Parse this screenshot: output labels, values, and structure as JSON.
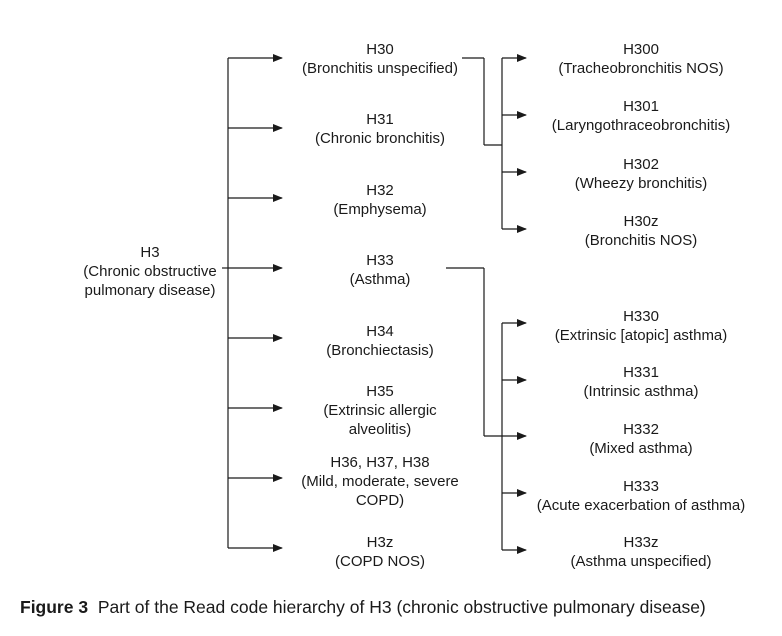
{
  "root": {
    "code": "H3",
    "lines": [
      "(Chronic obstructive",
      "pulmonary disease)"
    ]
  },
  "level1": [
    {
      "code": "H30",
      "lines": [
        "(Bronchitis unspecified)"
      ]
    },
    {
      "code": "H31",
      "lines": [
        "(Chronic bronchitis)"
      ]
    },
    {
      "code": "H32",
      "lines": [
        "(Emphysema)"
      ]
    },
    {
      "code": "H33",
      "lines": [
        "(Asthma)"
      ]
    },
    {
      "code": "H34",
      "lines": [
        "(Bronchiectasis)"
      ]
    },
    {
      "code": "H35",
      "lines": [
        "(Extrinsic allergic",
        "alveolitis)"
      ]
    },
    {
      "code": "H36, H37, H38",
      "lines": [
        "(Mild, moderate, severe",
        "COPD)"
      ]
    },
    {
      "code": "H3z",
      "lines": [
        "(COPD NOS)"
      ]
    }
  ],
  "h30_children": [
    {
      "code": "H300",
      "lines": [
        "(Tracheobronchitis NOS)"
      ]
    },
    {
      "code": "H301",
      "lines": [
        "(Laryngothraceobronchitis)"
      ]
    },
    {
      "code": "H302",
      "lines": [
        "(Wheezy bronchitis)"
      ]
    },
    {
      "code": "H30z",
      "lines": [
        "(Bronchitis NOS)"
      ]
    }
  ],
  "h33_children": [
    {
      "code": "H330",
      "lines": [
        "(Extrinsic [atopic] asthma)"
      ]
    },
    {
      "code": "H331",
      "lines": [
        "(Intrinsic asthma)"
      ]
    },
    {
      "code": "H332",
      "lines": [
        "(Mixed asthma)"
      ]
    },
    {
      "code": "H333",
      "lines": [
        "(Acute exacerbation of asthma)"
      ]
    },
    {
      "code": "H33z",
      "lines": [
        "(Asthma unspecified)"
      ]
    }
  ],
  "caption": {
    "label": "Figure 3",
    "text": "Part of the Read code hierarchy of H3 (chronic obstructive pulmonary disease)"
  }
}
